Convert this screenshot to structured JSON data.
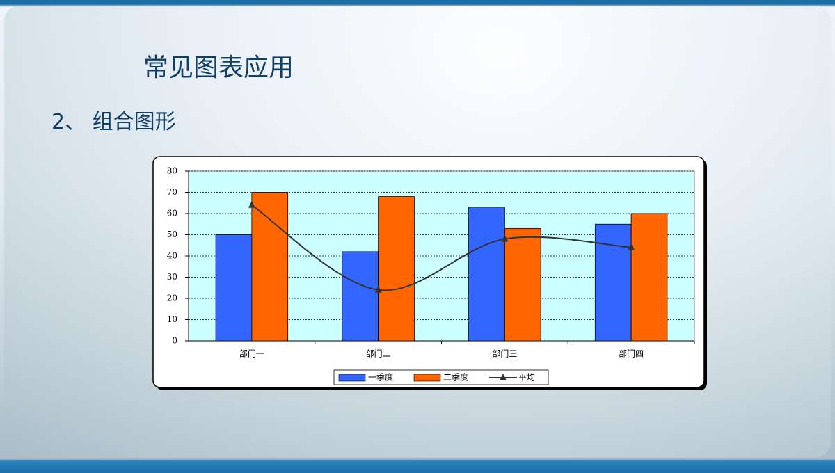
{
  "header": {
    "title": "常见图表应用",
    "subtitle": "2、 组合图形"
  },
  "chart_data": {
    "type": "bar",
    "categories": [
      "部门一",
      "部门二",
      "部门三",
      "部门四"
    ],
    "series": [
      {
        "name": "一季度",
        "color": "#3366ff",
        "values": [
          50,
          42,
          63,
          55
        ]
      },
      {
        "name": "二季度",
        "color": "#ff6600",
        "values": [
          70,
          68,
          53,
          60
        ]
      },
      {
        "name": "平均",
        "color": "#333333",
        "type": "line",
        "values": [
          64,
          24,
          48,
          44
        ]
      }
    ],
    "ylim": [
      0,
      80
    ],
    "yticks": [
      0,
      10,
      20,
      30,
      40,
      50,
      60,
      70,
      80
    ],
    "grid": true,
    "legend": "bottom"
  }
}
